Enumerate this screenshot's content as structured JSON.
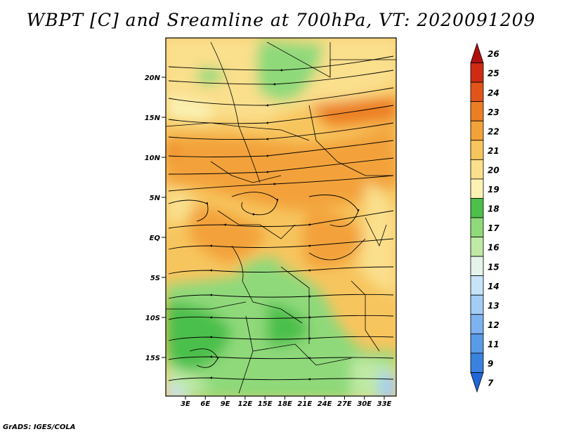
{
  "title": "WBPT [C] and Sreamline at 700hPa, VT: 2020091209",
  "credit": "GrADS: IGES/COLA",
  "map": {
    "lat_labels": [
      "20N",
      "15N",
      "10N",
      "5N",
      "EQ",
      "5S",
      "10S",
      "15S"
    ],
    "lon_labels": [
      "3E",
      "6E",
      "9E",
      "12E",
      "15E",
      "18E",
      "21E",
      "24E",
      "27E",
      "30E",
      "33E"
    ]
  },
  "colorbar": {
    "labels": [
      "7",
      "9",
      "11",
      "12",
      "13",
      "14",
      "15",
      "16",
      "17",
      "18",
      "19",
      "20",
      "21",
      "22",
      "23",
      "24",
      "25",
      "26"
    ],
    "colors": [
      "#2166d6",
      "#3a82e0",
      "#5a9ae8",
      "#7eb3f0",
      "#a3cdf5",
      "#c6e3f8",
      "#e4f4ea",
      "#bfe9a4",
      "#8fd97a",
      "#4cbf4c",
      "#fbf2b4",
      "#fadf8c",
      "#f7c55e",
      "#f3a23a",
      "#ec7e24",
      "#e25419",
      "#cf2a14",
      "#b0100c"
    ]
  }
}
